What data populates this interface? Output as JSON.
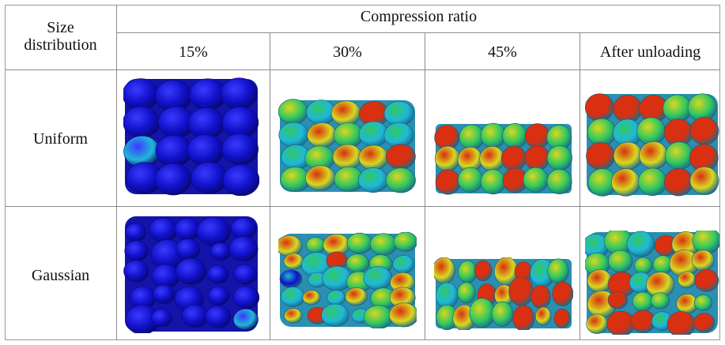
{
  "table": {
    "row_header_label_line1": "Size",
    "row_header_label_line2": "distribution",
    "group_header": "Compression ratio",
    "columns": [
      "15%",
      "30%",
      "45%",
      "After unloading"
    ],
    "rows": [
      "Uniform",
      "Gaussian"
    ]
  },
  "colors": {
    "low": "#1010c8",
    "mid_low": "#20b8d8",
    "mid": "#30c860",
    "mid_high": "#d8d820",
    "high": "#d83010",
    "border": "#8c8c8c"
  },
  "cells": [
    {
      "row": "Uniform",
      "column": "15%",
      "stress_level": 0.05
    },
    {
      "row": "Uniform",
      "column": "30%",
      "stress_level": 0.35
    },
    {
      "row": "Uniform",
      "column": "45%",
      "stress_level": 0.6
    },
    {
      "row": "Uniform",
      "column": "After unloading",
      "stress_level": 0.55
    },
    {
      "row": "Gaussian",
      "column": "15%",
      "stress_level": 0.05
    },
    {
      "row": "Gaussian",
      "column": "30%",
      "stress_level": 0.3
    },
    {
      "row": "Gaussian",
      "column": "45%",
      "stress_level": 0.5
    },
    {
      "row": "Gaussian",
      "column": "After unloading",
      "stress_level": 0.55
    }
  ]
}
